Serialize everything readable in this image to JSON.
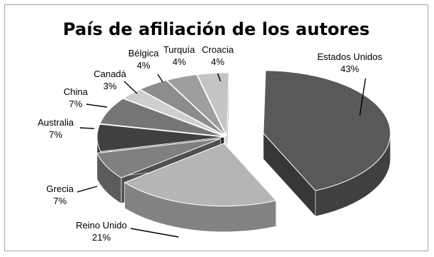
{
  "chart_data": {
    "type": "pie",
    "title": "País de afiliación de los autores",
    "value_suffix": "%",
    "categories": [
      "Estados Unidos",
      "Reino Unido",
      "Grecia",
      "Australia",
      "China",
      "Canadá",
      "Bélgica",
      "Turquía",
      "Croacia"
    ],
    "values": [
      43,
      21,
      7,
      7,
      7,
      3,
      4,
      4,
      4
    ],
    "colors": [
      "#595959",
      "#b5b5b5",
      "#808080",
      "#404040",
      "#767676",
      "#cfcfcf",
      "#8c8c8c",
      "#9e9e9e",
      "#c4c4c4"
    ],
    "exploded": "Estados Unidos",
    "style": "3d-exploded"
  }
}
